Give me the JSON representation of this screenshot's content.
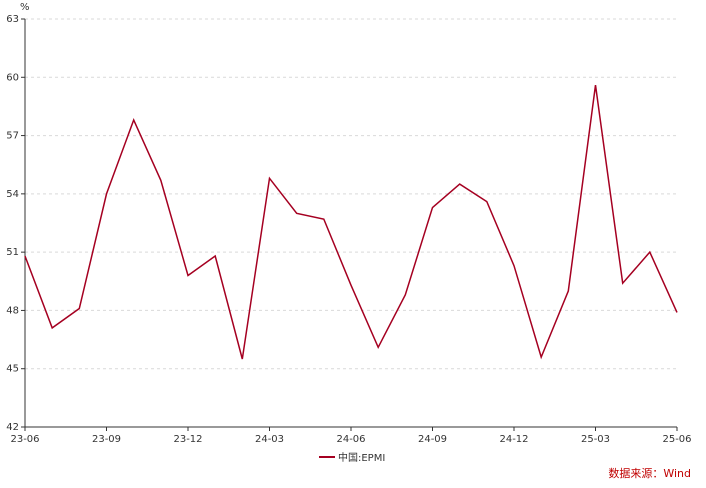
{
  "chart_data": {
    "type": "line",
    "unit": "%",
    "ylim": [
      42,
      63
    ],
    "yticks": [
      "42",
      "45",
      "48",
      "51",
      "54",
      "57",
      "60",
      "63"
    ],
    "x_tick_labels": [
      "23-06",
      "23-09",
      "23-12",
      "24-03",
      "24-06",
      "24-09",
      "24-12",
      "25-03",
      "25-06"
    ],
    "x": [
      "23-06",
      "23-07",
      "23-08",
      "23-09",
      "23-10",
      "23-11",
      "23-12",
      "24-01",
      "24-02",
      "24-03",
      "24-04",
      "24-05",
      "24-06",
      "24-07",
      "24-08",
      "24-09",
      "24-10",
      "24-11",
      "24-12",
      "25-01",
      "25-02",
      "25-03",
      "25-04",
      "25-05",
      "25-06"
    ],
    "series": [
      {
        "name": "中国:EPMI",
        "color": "#a50021",
        "values": [
          50.8,
          47.1,
          48.1,
          54.0,
          57.8,
          54.7,
          49.8,
          50.8,
          45.5,
          54.8,
          53.0,
          52.7,
          49.3,
          46.1,
          48.8,
          53.3,
          54.5,
          53.6,
          50.3,
          45.6,
          49.0,
          59.6,
          49.4,
          51.0,
          47.9
        ]
      }
    ],
    "grid": "horizontal-dashed",
    "legend_position": "bottom-center"
  },
  "source": "数据来源：Wind"
}
